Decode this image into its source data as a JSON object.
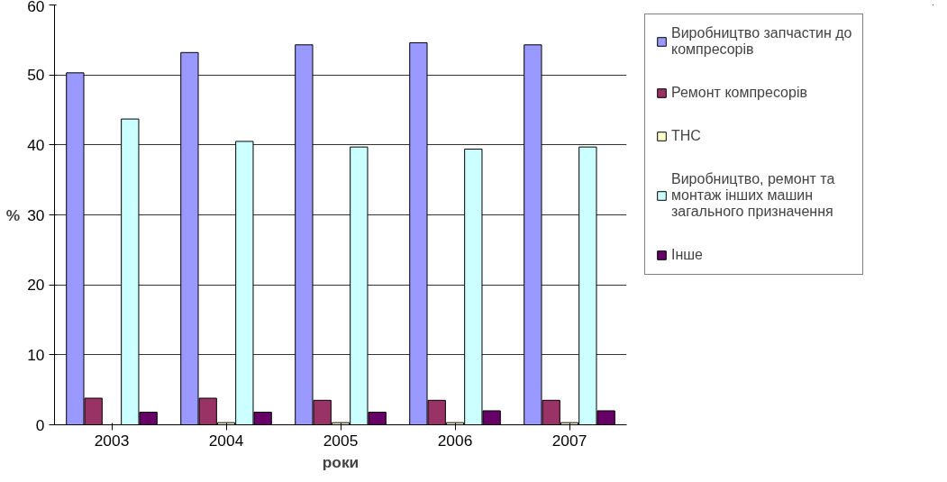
{
  "chart_data": {
    "type": "bar",
    "xlabel": "роки",
    "ylabel": "%",
    "categories": [
      "2003",
      "2004",
      "2005",
      "2006",
      "2007"
    ],
    "series": [
      {
        "name": "Виробництво запчастин до компресорів",
        "color": "#9999ff",
        "values": [
          50.3,
          53.2,
          54.3,
          54.6,
          54.3
        ]
      },
      {
        "name": "Ремонт компресорів",
        "color": "#993366",
        "values": [
          3.8,
          3.8,
          3.5,
          3.5,
          3.5
        ]
      },
      {
        "name": "ТНС",
        "color": "#ffffcc",
        "values": [
          null,
          0.3,
          0.3,
          0.3,
          0.3
        ]
      },
      {
        "name": "Виробництво, ремонт та монтаж інших машин загального призначення",
        "color": "#ccffff",
        "values": [
          43.7,
          40.5,
          39.7,
          39.4,
          39.7
        ]
      },
      {
        "name": "Інше",
        "color": "#660066",
        "values": [
          1.8,
          1.8,
          1.8,
          2.0,
          2.0
        ]
      }
    ],
    "ylim": [
      0,
      60
    ],
    "yticks": [
      0,
      10,
      20,
      30,
      40,
      50,
      60
    ],
    "grid": "y",
    "legend": "right"
  }
}
